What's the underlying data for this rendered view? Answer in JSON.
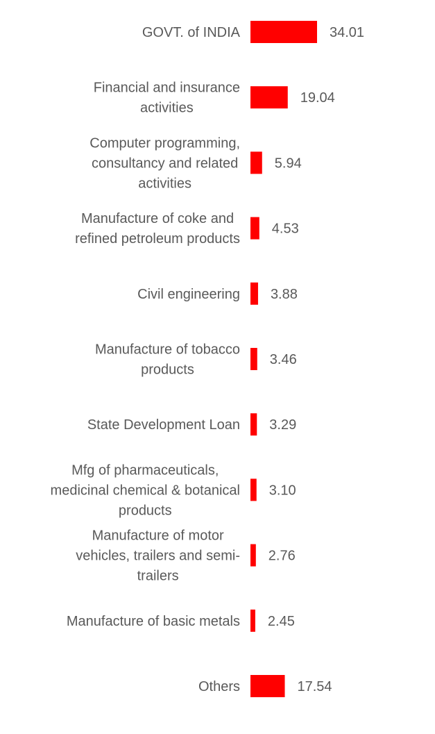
{
  "chart_data": {
    "type": "bar",
    "orientation": "horizontal",
    "bar_color": "#ff0000",
    "grid": false,
    "legend": "none",
    "xlim": [
      0,
      100
    ],
    "categories": [
      "GOVT. of INDIA",
      "Financial and insurance activities",
      "Computer programming, consultancy and related activities",
      "Manufacture of coke and refined petroleum products",
      "Civil engineering",
      "Manufacture of tobacco products",
      "State Development Loan",
      "Mfg of pharmaceuticals, medicinal chemical & botanical products",
      "Manufacture of motor vehicles, trailers and semi-trailers",
      "Manufacture of basic metals",
      "Others"
    ],
    "category_lines": [
      [
        "GOVT. of INDIA"
      ],
      [
        "Financial and insurance",
        "activities"
      ],
      [
        "Computer programming,",
        "consultancy and related",
        "activities"
      ],
      [
        "Manufacture of coke and",
        "refined petroleum products"
      ],
      [
        "Civil engineering"
      ],
      [
        "Manufacture of tobacco",
        "products"
      ],
      [
        "State Development Loan"
      ],
      [
        "Mfg of pharmaceuticals,",
        "medicinal chemical & botanical",
        "products"
      ],
      [
        "Manufacture of motor",
        "vehicles, trailers and semi-",
        "trailers"
      ],
      [
        "Manufacture of basic metals"
      ],
      [
        "Others"
      ]
    ],
    "values": [
      34.01,
      19.04,
      5.94,
      4.53,
      3.88,
      3.46,
      3.29,
      3.1,
      2.76,
      2.45,
      17.54
    ],
    "value_labels": [
      "34.01",
      "19.04",
      "5.94",
      "4.53",
      "3.88",
      "3.46",
      "3.29",
      "3.10",
      "2.76",
      "2.45",
      "17.54"
    ]
  }
}
